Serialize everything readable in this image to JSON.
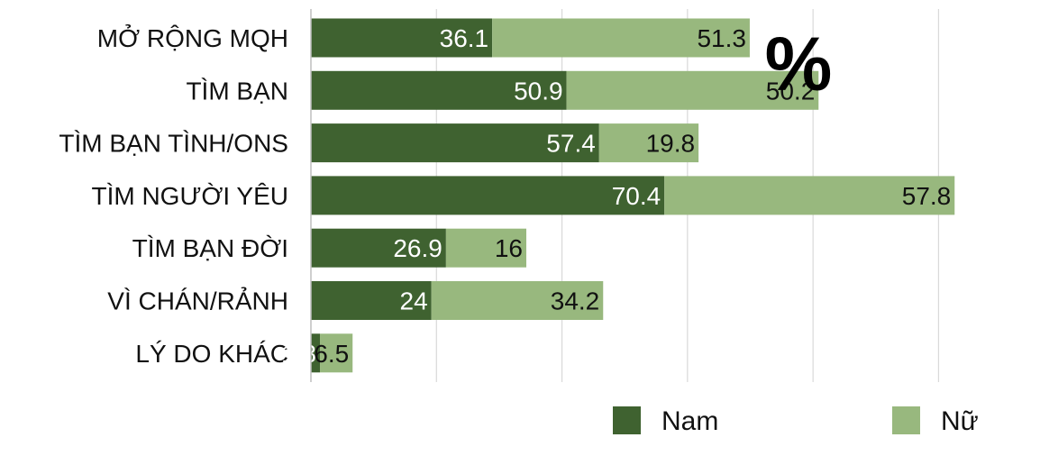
{
  "chart_data": {
    "type": "bar",
    "orientation": "horizontal",
    "stacked": true,
    "categories": [
      "MỞ RỘNG MQH",
      "TÌM BẠN",
      "TÌM BẠN TÌNH/ONS",
      "TÌM NGƯỜI YÊU",
      "TÌM BẠN ĐỜI",
      "VÌ CHÁN/RẢNH",
      "LÝ DO KHÁC"
    ],
    "series": [
      {
        "name": "Nam",
        "values": [
          36.1,
          50.9,
          57.4,
          70.4,
          26.9,
          24,
          1.8
        ],
        "color": "#3f6230",
        "label_color": "#ffffff"
      },
      {
        "name": "Nữ",
        "values": [
          51.3,
          50.2,
          19.8,
          57.8,
          16,
          34.2,
          6.5
        ],
        "color": "#98b87e",
        "label_color": "#111111"
      }
    ],
    "unit": "%",
    "xlim": [
      0,
      140
    ],
    "grid": true,
    "legend_position": "bottom-right"
  }
}
